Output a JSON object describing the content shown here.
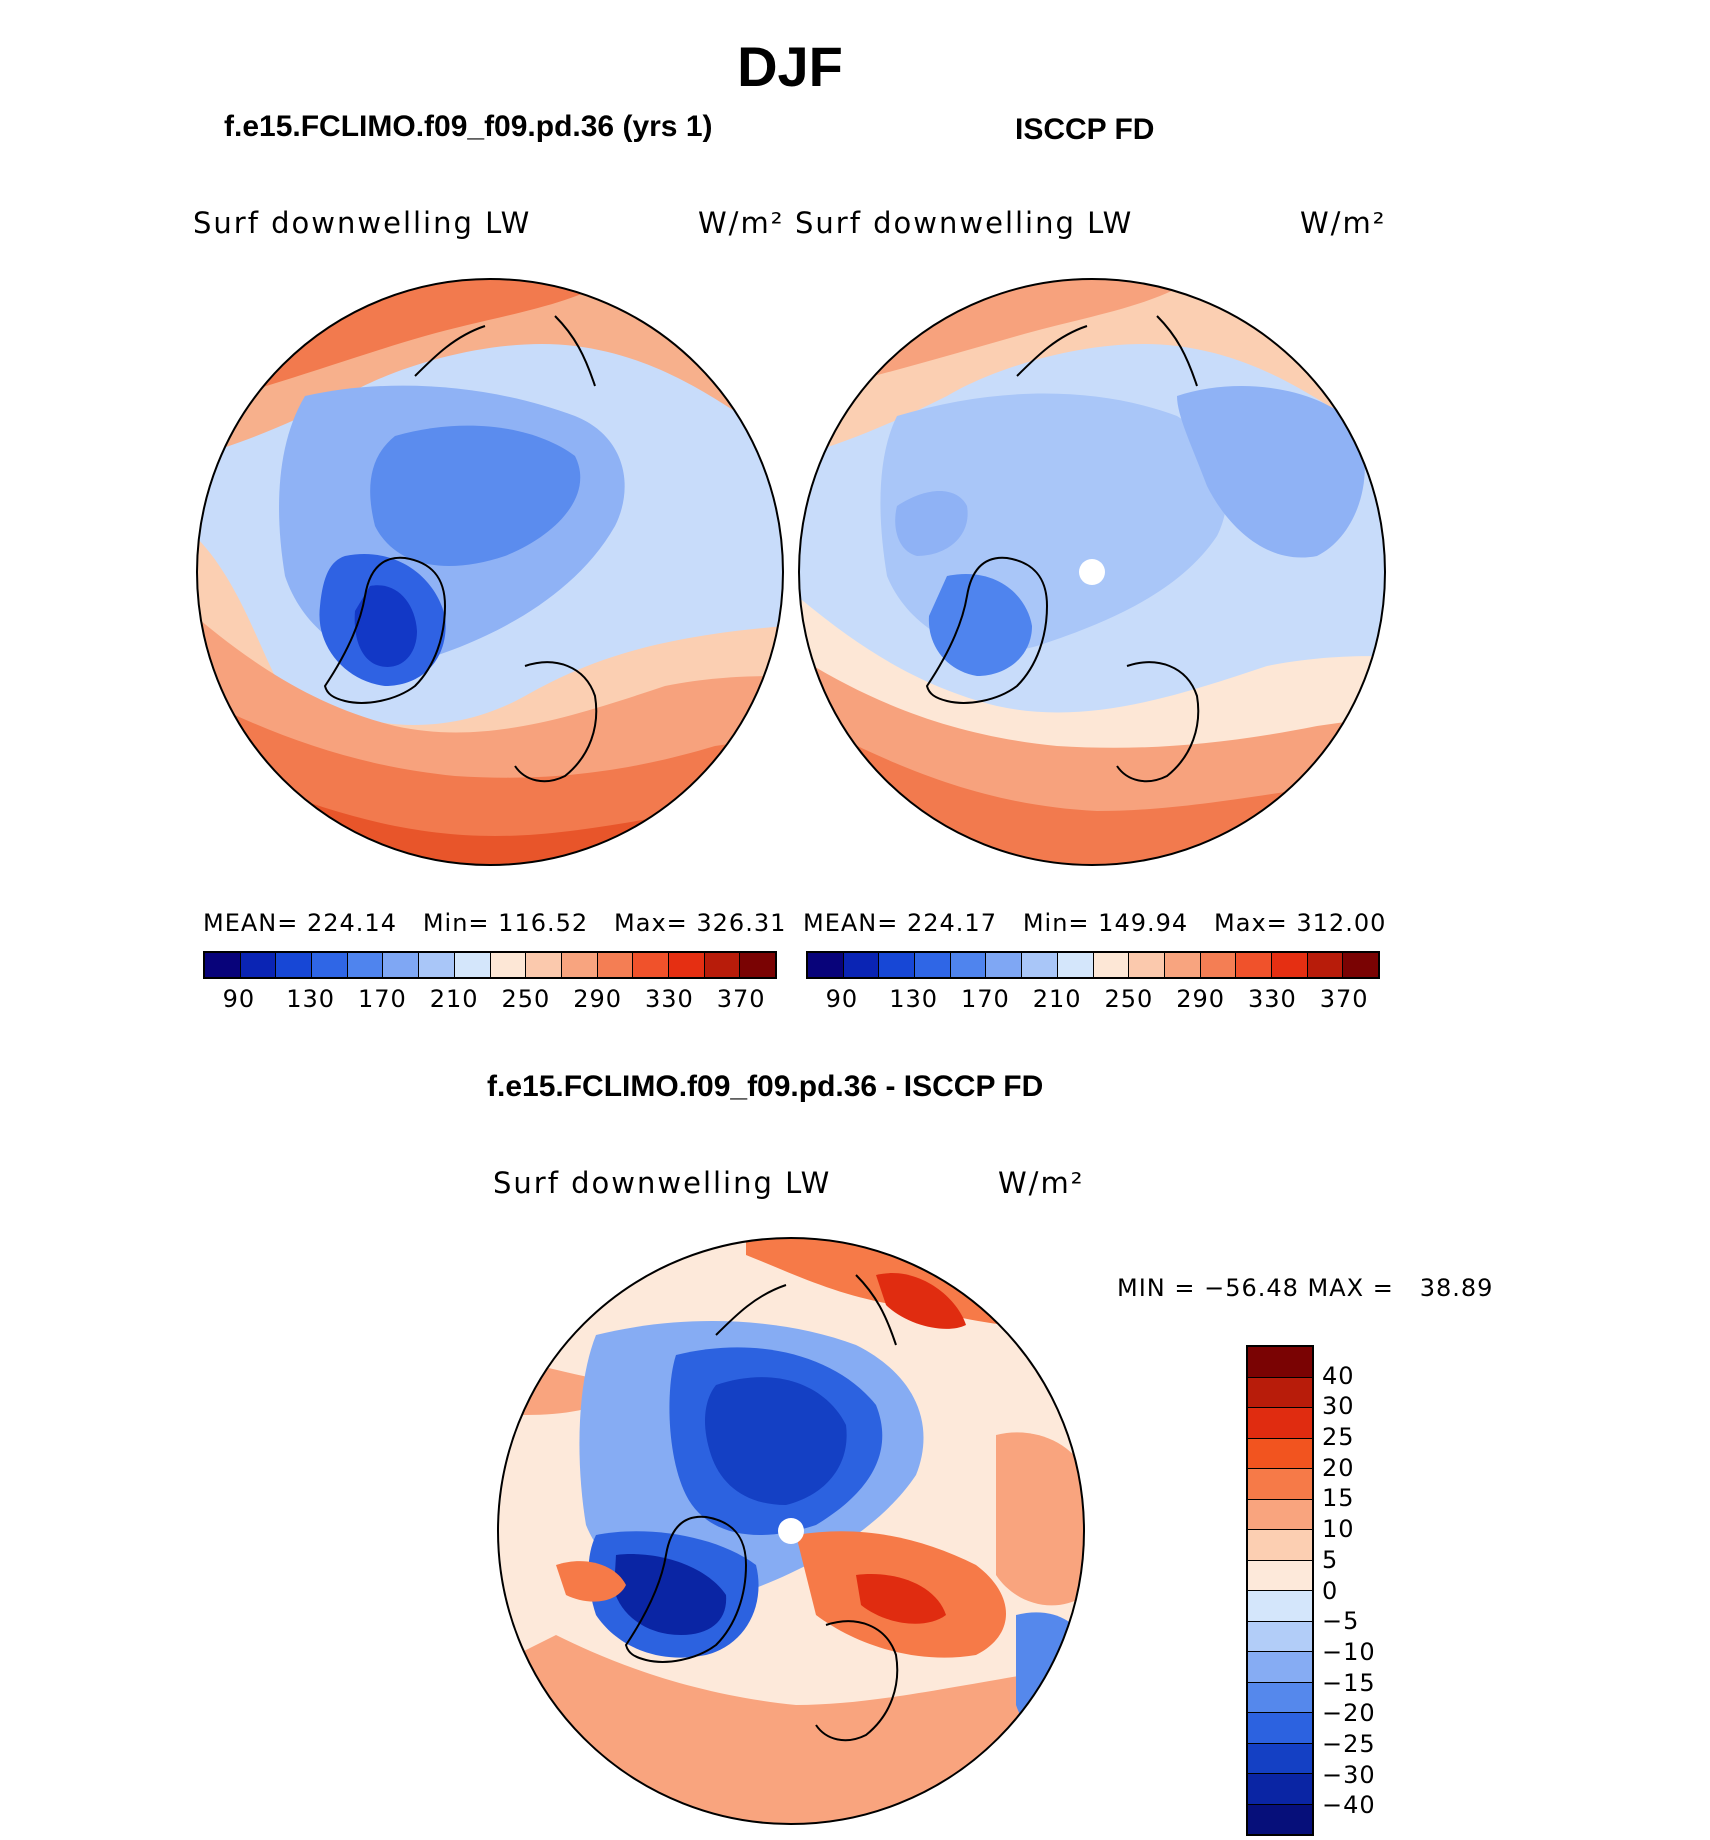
{
  "figure": {
    "title": "DJF",
    "subtitle_left": "f.e15.FCLIMO.f09_f09.pd.36 (yrs 1)",
    "subtitle_right": "ISCCP FD",
    "subtitle_diff": "f.e15.FCLIMO.f09_f09.pd.36 - ISCCP FD"
  },
  "panels": {
    "left": {
      "variable": "Surf downwelling LW",
      "units": "W/m²",
      "stats": "MEAN= 224.14   Min= 116.52   Max= 326.31"
    },
    "right": {
      "variable": "Surf downwelling LW",
      "units": "W/m²",
      "stats": "MEAN= 224.17   Min= 149.94   Max= 312.00"
    },
    "diff": {
      "variable": "Surf downwelling LW",
      "units": "W/m²",
      "stats": "MIN = −56.48 MAX =   38.89"
    }
  },
  "colorbar_abs": {
    "tick_labels": [
      "90",
      "130",
      "170",
      "210",
      "250",
      "290",
      "330",
      "370"
    ],
    "colors": [
      "#08037a",
      "#0a24b4",
      "#1747d6",
      "#2f66e6",
      "#4f84ee",
      "#7fa7f4",
      "#a9c6f8",
      "#d4e6fb",
      "#fde7d6",
      "#fbc9ad",
      "#f8a47f",
      "#f47e54",
      "#f0522b",
      "#e52f12",
      "#b81c0a",
      "#7a0303"
    ]
  },
  "colorbar_diff": {
    "tick_labels": [
      "40",
      "30",
      "25",
      "20",
      "15",
      "10",
      "5",
      "0",
      "−5",
      "−10",
      "−15",
      "−20",
      "−25",
      "−30",
      "−40"
    ],
    "colors": [
      "#7a0303",
      "#b81c0a",
      "#e02c10",
      "#f2541f",
      "#f67a48",
      "#f9a47e",
      "#fccfb2",
      "#fde9da",
      "#d4e6fb",
      "#b2cdf8",
      "#86acf3",
      "#5588ec",
      "#2c62e0",
      "#1440c4",
      "#0a25a4",
      "#060f7a"
    ]
  },
  "chart_data": {
    "type": "polar-contour-maps",
    "title": "DJF",
    "projection": "north polar stereographic",
    "series": [
      {
        "name": "f.e15.FCLIMO.f09_f09.pd.36 (yrs 1)",
        "variable": "Surf downwelling LW",
        "units": "W/m²",
        "mean": 224.14,
        "min": 116.52,
        "max": 326.31,
        "levels": [
          90,
          130,
          170,
          210,
          250,
          290,
          330,
          370
        ]
      },
      {
        "name": "ISCCP FD",
        "variable": "Surf downwelling LW",
        "units": "W/m²",
        "mean": 224.17,
        "min": 149.94,
        "max": 312.0,
        "levels": [
          90,
          130,
          170,
          210,
          250,
          290,
          330,
          370
        ]
      },
      {
        "name": "f.e15.FCLIMO.f09_f09.pd.36 - ISCCP FD",
        "variable": "Surf downwelling LW",
        "units": "W/m²",
        "min": -56.48,
        "max": 38.89,
        "levels": [
          -40,
          -30,
          -25,
          -20,
          -15,
          -10,
          -5,
          0,
          5,
          10,
          15,
          20,
          25,
          30,
          40
        ]
      }
    ]
  }
}
